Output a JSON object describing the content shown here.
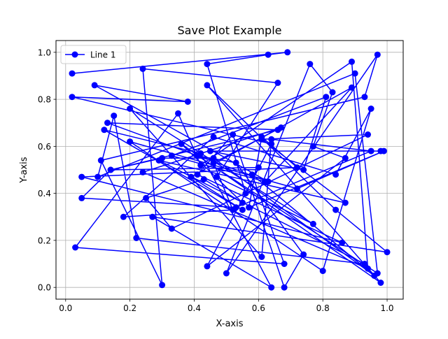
{
  "chart_data": {
    "type": "line",
    "title": "Save Plot Example",
    "xlabel": "X-axis",
    "ylabel": "Y-axis",
    "xlim": [
      -0.03,
      1.05
    ],
    "ylim": [
      -0.05,
      1.05
    ],
    "xticks": [
      0.0,
      0.2,
      0.4,
      0.6,
      0.8,
      1.0
    ],
    "xtick_labels": [
      "0.0",
      "0.2",
      "0.4",
      "0.6",
      "0.8",
      "1.0"
    ],
    "yticks": [
      0.0,
      0.2,
      0.4,
      0.6,
      0.8,
      1.0
    ],
    "ytick_labels": [
      "0.0",
      "0.2",
      "0.4",
      "0.6",
      "0.8",
      "1.0"
    ],
    "grid": true,
    "legend_position": "upper-left",
    "series": [
      {
        "name": "Line 1",
        "color": "#0000ff",
        "marker": "circle",
        "x": [
          0.02,
          0.69,
          0.63,
          0.44,
          0.56,
          0.6,
          0.14,
          0.66,
          0.13,
          0.63,
          0.09,
          0.38,
          0.02,
          0.64,
          0.44,
          0.87,
          0.77,
          0.83,
          0.76,
          0.5,
          0.97,
          0.93,
          0.11,
          0.3,
          0.24,
          0.66,
          0.47,
          0.77,
          0.2,
          0.61,
          0.64,
          0.95,
          0.53,
          0.05,
          0.14,
          0.3,
          0.46,
          0.96,
          0.58,
          0.68,
          0.03,
          0.35,
          0.42,
          0.89,
          0.94,
          0.24,
          0.67,
          0.46,
          0.52,
          0.18,
          0.46,
          0.84,
          0.95,
          0.8,
          0.2,
          0.72,
          0.99,
          0.57,
          0.61,
          0.72,
          0.05,
          0.86,
          0.41,
          0.52,
          0.68,
          0.74,
          0.53,
          0.41,
          0.97,
          0.9,
          0.1,
          0.15,
          0.22,
          0.93,
          0.29,
          0.87,
          0.61,
          0.94,
          0.33,
          0.25,
          0.43,
          0.55,
          0.36,
          0.98,
          0.44,
          0.84,
          1.0,
          0.27,
          0.64,
          0.42,
          0.12,
          0.55,
          0.39,
          0.89,
          0.62,
          0.33,
          0.81,
          0.74,
          0.45,
          0.98
        ],
        "y": [
          0.91,
          1.0,
          0.99,
          0.95,
          0.4,
          0.51,
          0.5,
          0.67,
          0.7,
          0.45,
          0.86,
          0.79,
          0.81,
          0.61,
          0.09,
          0.55,
          0.6,
          0.83,
          0.95,
          0.06,
          0.99,
          0.81,
          0.54,
          0.01,
          0.93,
          0.87,
          0.47,
          0.27,
          0.76,
          0.13,
          0.63,
          0.58,
          0.34,
          0.38,
          0.5,
          0.55,
          0.55,
          0.05,
          0.48,
          0.1,
          0.17,
          0.74,
          0.52,
          0.96,
          0.08,
          0.49,
          0.68,
          0.53,
          0.33,
          0.3,
          0.64,
          0.48,
          0.76,
          0.07,
          0.62,
          0.42,
          0.58,
          0.34,
          0.64,
          0.51,
          0.47,
          0.19,
          0.48,
          0.65,
          0.0,
          0.14,
          0.53,
          0.56,
          0.06,
          0.91,
          0.47,
          0.73,
          0.21,
          0.1,
          0.54,
          0.36,
          0.63,
          0.65,
          0.25,
          0.38,
          0.46,
          0.36,
          0.61,
          0.02,
          0.86,
          0.33,
          0.15,
          0.3,
          0.0,
          0.57,
          0.67,
          0.33,
          0.47,
          0.85,
          0.45,
          0.56,
          0.81,
          0.5,
          0.58,
          0.58
        ]
      }
    ]
  }
}
